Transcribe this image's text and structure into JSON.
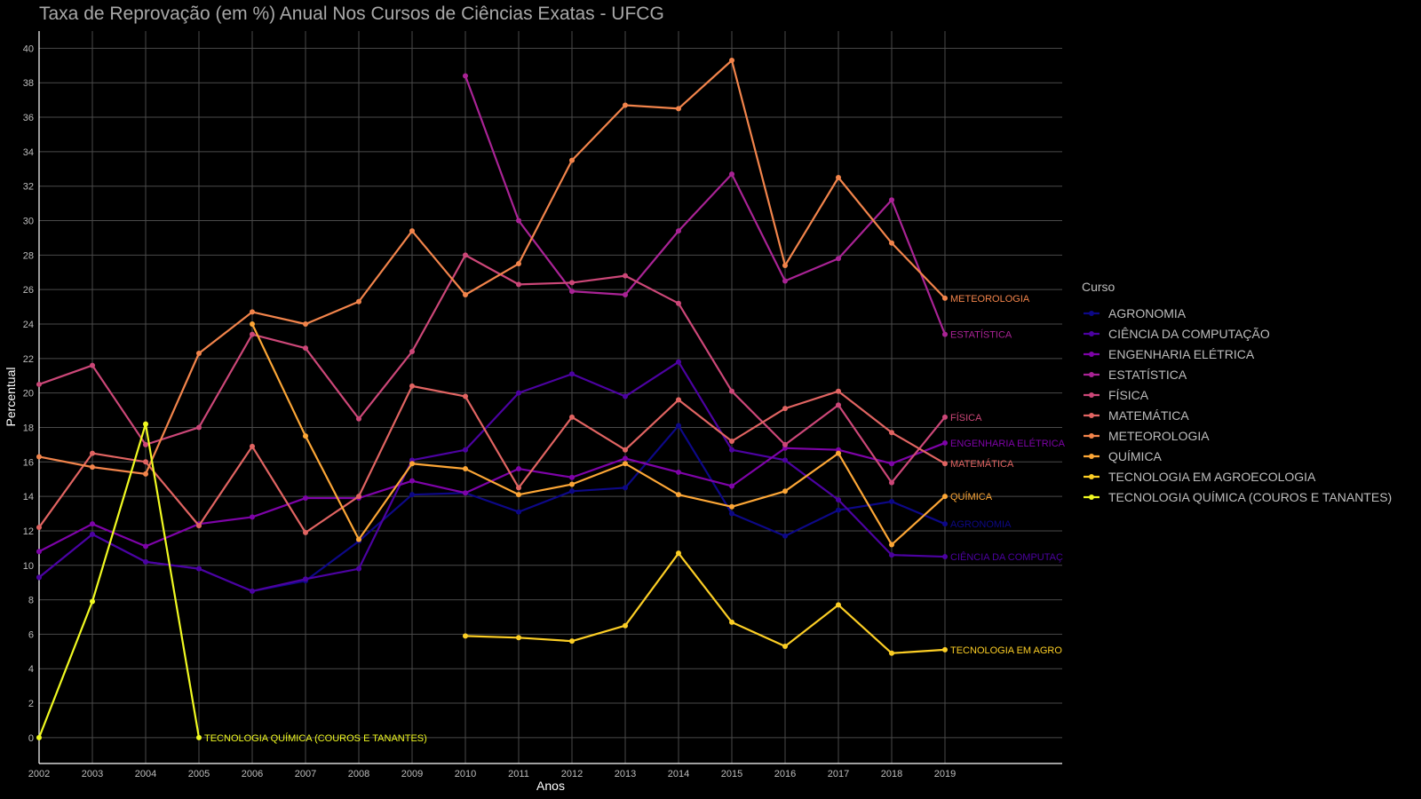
{
  "chart_data": {
    "type": "line",
    "title": "Taxa de Reprovação (em %) Anual Nos Cursos de Ciências Exatas - UFCG",
    "xlabel": "Anos",
    "ylabel": "Percentual",
    "x": [
      2002,
      2003,
      2004,
      2005,
      2006,
      2007,
      2008,
      2009,
      2010,
      2011,
      2012,
      2013,
      2014,
      2015,
      2016,
      2017,
      2018,
      2019
    ],
    "xlim": [
      2002,
      2021.2
    ],
    "ylim": [
      -1.5,
      41
    ],
    "yticks": [
      0,
      2,
      4,
      6,
      8,
      10,
      12,
      14,
      16,
      18,
      20,
      22,
      24,
      26,
      28,
      30,
      32,
      34,
      36,
      38,
      40
    ],
    "grid": true,
    "legend": {
      "title": "Curso",
      "position": "right"
    },
    "series": [
      {
        "name": "AGRONOMIA",
        "label": "AGRONOMIA",
        "color": "#0d0887",
        "values": [
          9.3,
          11.8,
          10.2,
          9.8,
          8.5,
          9.1,
          11.4,
          14.1,
          14.2,
          13.1,
          14.3,
          14.5,
          18.1,
          13.0,
          11.7,
          13.2,
          13.7,
          12.4
        ]
      },
      {
        "name": "CIÊNCIA DA COMPUTAÇÃO",
        "label": "CIÊNCIA DA COMPUTAÇ",
        "color": "#4c02a1",
        "values": [
          9.3,
          11.8,
          10.2,
          9.8,
          8.5,
          9.2,
          9.8,
          16.1,
          16.7,
          20.0,
          21.1,
          19.8,
          21.8,
          16.7,
          16.1,
          13.8,
          10.6,
          10.5
        ]
      },
      {
        "name": "ENGENHARIA ELÉTRICA",
        "label": "ENGENHARIA ELÉTRICA",
        "color": "#7e03a8",
        "values": [
          10.8,
          12.4,
          11.1,
          12.4,
          12.8,
          13.9,
          13.9,
          14.9,
          14.2,
          15.6,
          15.1,
          16.2,
          15.4,
          14.6,
          16.8,
          16.7,
          15.9,
          17.1
        ]
      },
      {
        "name": "ESTATÍSTICA",
        "label": "ESTATÍSTICA",
        "color": "#a92395",
        "values": [
          null,
          null,
          null,
          null,
          null,
          null,
          null,
          null,
          38.4,
          30.0,
          25.9,
          25.7,
          29.4,
          32.7,
          26.5,
          27.8,
          31.2,
          23.4
        ]
      },
      {
        "name": "FÍSICA",
        "label": "FÍSICA",
        "color": "#cc4778",
        "values": [
          20.5,
          21.6,
          17.0,
          18.0,
          23.4,
          22.6,
          18.5,
          22.4,
          28.0,
          26.3,
          26.4,
          26.8,
          25.2,
          20.1,
          17.0,
          19.3,
          14.8,
          18.6
        ]
      },
      {
        "name": "MATEMÁTICA",
        "label": "MATEMÁTICA",
        "color": "#e16462",
        "values": [
          12.2,
          16.5,
          16.0,
          12.3,
          16.9,
          11.9,
          14.0,
          20.4,
          19.8,
          14.5,
          18.6,
          16.7,
          19.6,
          17.2,
          19.1,
          20.1,
          17.7,
          15.9
        ]
      },
      {
        "name": "METEOROLOGIA",
        "label": "METEOROLOGIA",
        "color": "#f2844b",
        "values": [
          16.3,
          15.7,
          15.3,
          22.3,
          24.7,
          24.0,
          25.3,
          29.4,
          25.7,
          27.5,
          33.5,
          36.7,
          36.5,
          39.3,
          27.4,
          32.5,
          28.7,
          25.5
        ]
      },
      {
        "name": "QUÍMICA",
        "label": "QUÍMICA",
        "color": "#fca636",
        "values": [
          null,
          null,
          null,
          null,
          24.0,
          17.5,
          11.5,
          15.9,
          15.6,
          14.1,
          14.7,
          15.9,
          14.1,
          13.4,
          14.3,
          16.5,
          11.2,
          14.0
        ]
      },
      {
        "name": "TECNOLOGIA EM AGROECOLOGIA",
        "label": "TECNOLOGIA EM AGRO",
        "color": "#fcce25",
        "values": [
          null,
          null,
          null,
          null,
          null,
          null,
          null,
          null,
          5.9,
          5.8,
          5.6,
          6.5,
          10.7,
          6.7,
          5.3,
          7.7,
          4.9,
          5.1
        ]
      },
      {
        "name": "TECNOLOGIA QUÍMICA (COUROS E TANANTES)",
        "label": "TECNOLOGIA QUÍMICA (COUROS E TANANTES)",
        "color": "#f0f921",
        "values": [
          0.0,
          7.9,
          18.2,
          0.0,
          null,
          null,
          null,
          null,
          null,
          null,
          null,
          null,
          null,
          null,
          null,
          null,
          null,
          null
        ]
      }
    ]
  }
}
